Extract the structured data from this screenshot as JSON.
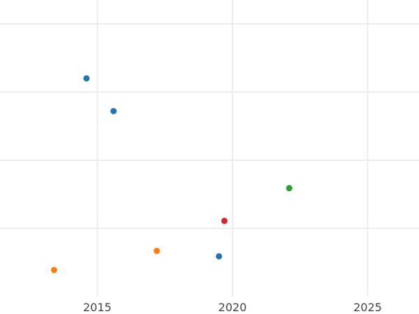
{
  "chart_data": {
    "type": "scatter",
    "title": "",
    "xlabel": "",
    "ylabel": "",
    "xlim": [
      2011.4,
      2026.9
    ],
    "ylim": [
      0,
      43.5
    ],
    "grid": true,
    "legend": "none",
    "x_ticks": [
      2015,
      2020,
      2025
    ],
    "x_tick_labels": [
      "2015",
      "2020",
      "2025"
    ],
    "y_gridlines": [
      10,
      20,
      30,
      40
    ],
    "series": [
      {
        "color": "#1f77b4",
        "points": [
          {
            "x": 2014.6,
            "y": 32.0
          },
          {
            "x": 2015.6,
            "y": 27.2
          },
          {
            "x": 2019.5,
            "y": 5.9
          }
        ]
      },
      {
        "color": "#ff7f0e",
        "points": [
          {
            "x": 2013.4,
            "y": 3.9
          },
          {
            "x": 2017.2,
            "y": 6.7
          }
        ]
      },
      {
        "color": "#2ca02c",
        "points": [
          {
            "x": 2022.1,
            "y": 15.9
          }
        ]
      },
      {
        "color": "#d62728",
        "points": [
          {
            "x": 2019.7,
            "y": 11.1
          }
        ]
      }
    ]
  }
}
